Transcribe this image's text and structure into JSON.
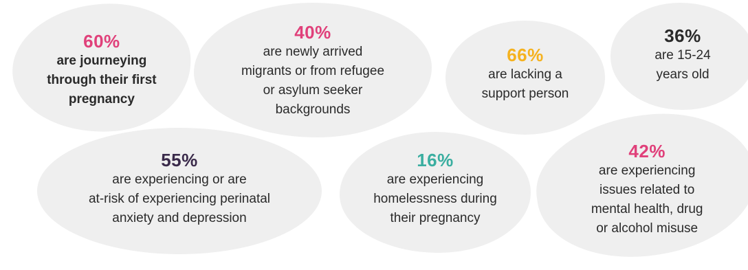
{
  "stats": [
    {
      "percent": "60%",
      "text": "are journeying\nthrough their first\npregnancy",
      "color": "#e0407a"
    },
    {
      "percent": "40%",
      "text": "are newly arrived\nmigrants or from refugee\nor asylum seeker\nbackgrounds",
      "color": "#e0407a"
    },
    {
      "percent": "66%",
      "text": "are lacking a\nsupport person",
      "color": "#f5b21f"
    },
    {
      "percent": "36%",
      "text": "are 15-24\nyears old",
      "color": "#2a2a2a"
    },
    {
      "percent": "55%",
      "text": "are experiencing or are\nat-risk of experiencing perinatal\nanxiety and depression",
      "color": "#3a2a4a"
    },
    {
      "percent": "16%",
      "text": "are experiencing\nhomelessness during\ntheir pregnancy",
      "color": "#3aaea0"
    },
    {
      "percent": "42%",
      "text": "are experiencing\nissues related to\nmental health, drug\nor alcohol misuse",
      "color": "#e0407a"
    }
  ],
  "colors": {
    "blob_background": "#efefef",
    "body_text": "#2a2a2a"
  }
}
